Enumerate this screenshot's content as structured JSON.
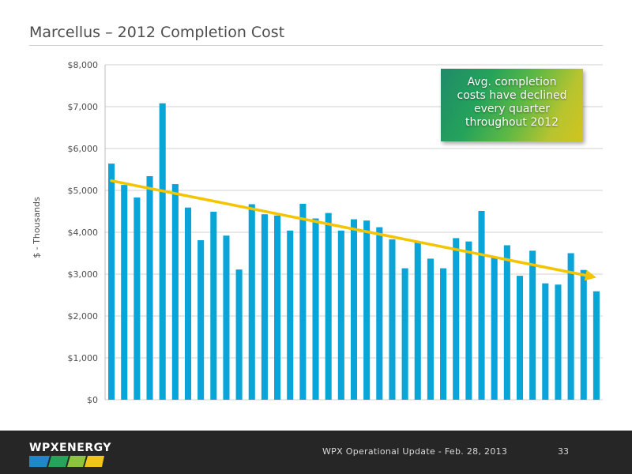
{
  "slide": {
    "title": "Marcellus – 2012 Completion Cost"
  },
  "chart_data": {
    "type": "bar",
    "ylabel": "$ - Thousands",
    "xlabel": "",
    "ylim": [
      0,
      8000
    ],
    "yticks": [
      0,
      1000,
      2000,
      3000,
      4000,
      5000,
      6000,
      7000,
      8000
    ],
    "ytick_labels": [
      "$0",
      "$1,000",
      "$2,000",
      "$3,000",
      "$4,000",
      "$5,000",
      "$6,000",
      "$7,000",
      "$8,000"
    ],
    "grid": true,
    "bar_color": "#0aa5d8",
    "trend_color": "#f5c400",
    "values": [
      5640,
      5130,
      4830,
      5340,
      7080,
      5150,
      4590,
      3810,
      4490,
      3920,
      3110,
      4670,
      4430,
      4400,
      4040,
      4680,
      4330,
      4460,
      4040,
      4310,
      4280,
      4120,
      3830,
      3140,
      3780,
      3370,
      3140,
      3860,
      3780,
      4510,
      3390,
      3690,
      2960,
      3560,
      2780,
      2750,
      3500,
      3100,
      2590
    ],
    "trend": {
      "start": 5230,
      "end": 2920
    }
  },
  "callout": {
    "lines": [
      "Avg. completion",
      "costs have declined",
      "every quarter",
      "throughout 2012"
    ]
  },
  "footer": {
    "logo": "WPXENERGY",
    "text": "WPX Operational Update - Feb. 28, 2013",
    "page": "33"
  }
}
